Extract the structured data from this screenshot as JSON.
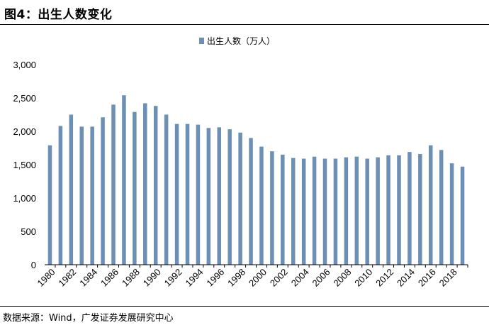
{
  "title": "图4：出生人数变化",
  "source": "数据来源：Wind，广发证券发展研究中心",
  "colors": {
    "bar": "#6c8fb5",
    "axis": "#000000"
  },
  "chart_data": {
    "type": "bar",
    "legend": {
      "label": "出生人数（万人）",
      "position": "top-center"
    },
    "ylim": [
      0,
      3000
    ],
    "yticks": [
      "0",
      "500",
      "1,000",
      "1,500",
      "2,000",
      "2,500",
      "3,000"
    ],
    "grid": false,
    "categories": [
      "1980",
      "1981",
      "1982",
      "1983",
      "1984",
      "1985",
      "1986",
      "1987",
      "1988",
      "1989",
      "1990",
      "1991",
      "1992",
      "1993",
      "1994",
      "1995",
      "1996",
      "1997",
      "1998",
      "1999",
      "2000",
      "2001",
      "2002",
      "2003",
      "2004",
      "2005",
      "2006",
      "2007",
      "2008",
      "2009",
      "2010",
      "2011",
      "2012",
      "2013",
      "2014",
      "2015",
      "2016",
      "2017",
      "2018",
      "2019"
    ],
    "xtick_labels": [
      "1980",
      "1982",
      "1984",
      "1986",
      "1988",
      "1990",
      "1992",
      "1994",
      "1996",
      "1998",
      "2000",
      "2002",
      "2004",
      "2006",
      "2008",
      "2010",
      "2012",
      "2014",
      "2016",
      "2018"
    ],
    "series": [
      {
        "name": "出生人数（万人）",
        "values": [
          1790,
          2080,
          2250,
          2070,
          2070,
          2210,
          2400,
          2540,
          2290,
          2420,
          2380,
          2250,
          2110,
          2110,
          2100,
          2050,
          2060,
          2030,
          1980,
          1900,
          1770,
          1700,
          1650,
          1600,
          1590,
          1620,
          1590,
          1590,
          1610,
          1620,
          1590,
          1610,
          1640,
          1640,
          1690,
          1660,
          1790,
          1720,
          1520,
          1470
        ]
      }
    ]
  }
}
